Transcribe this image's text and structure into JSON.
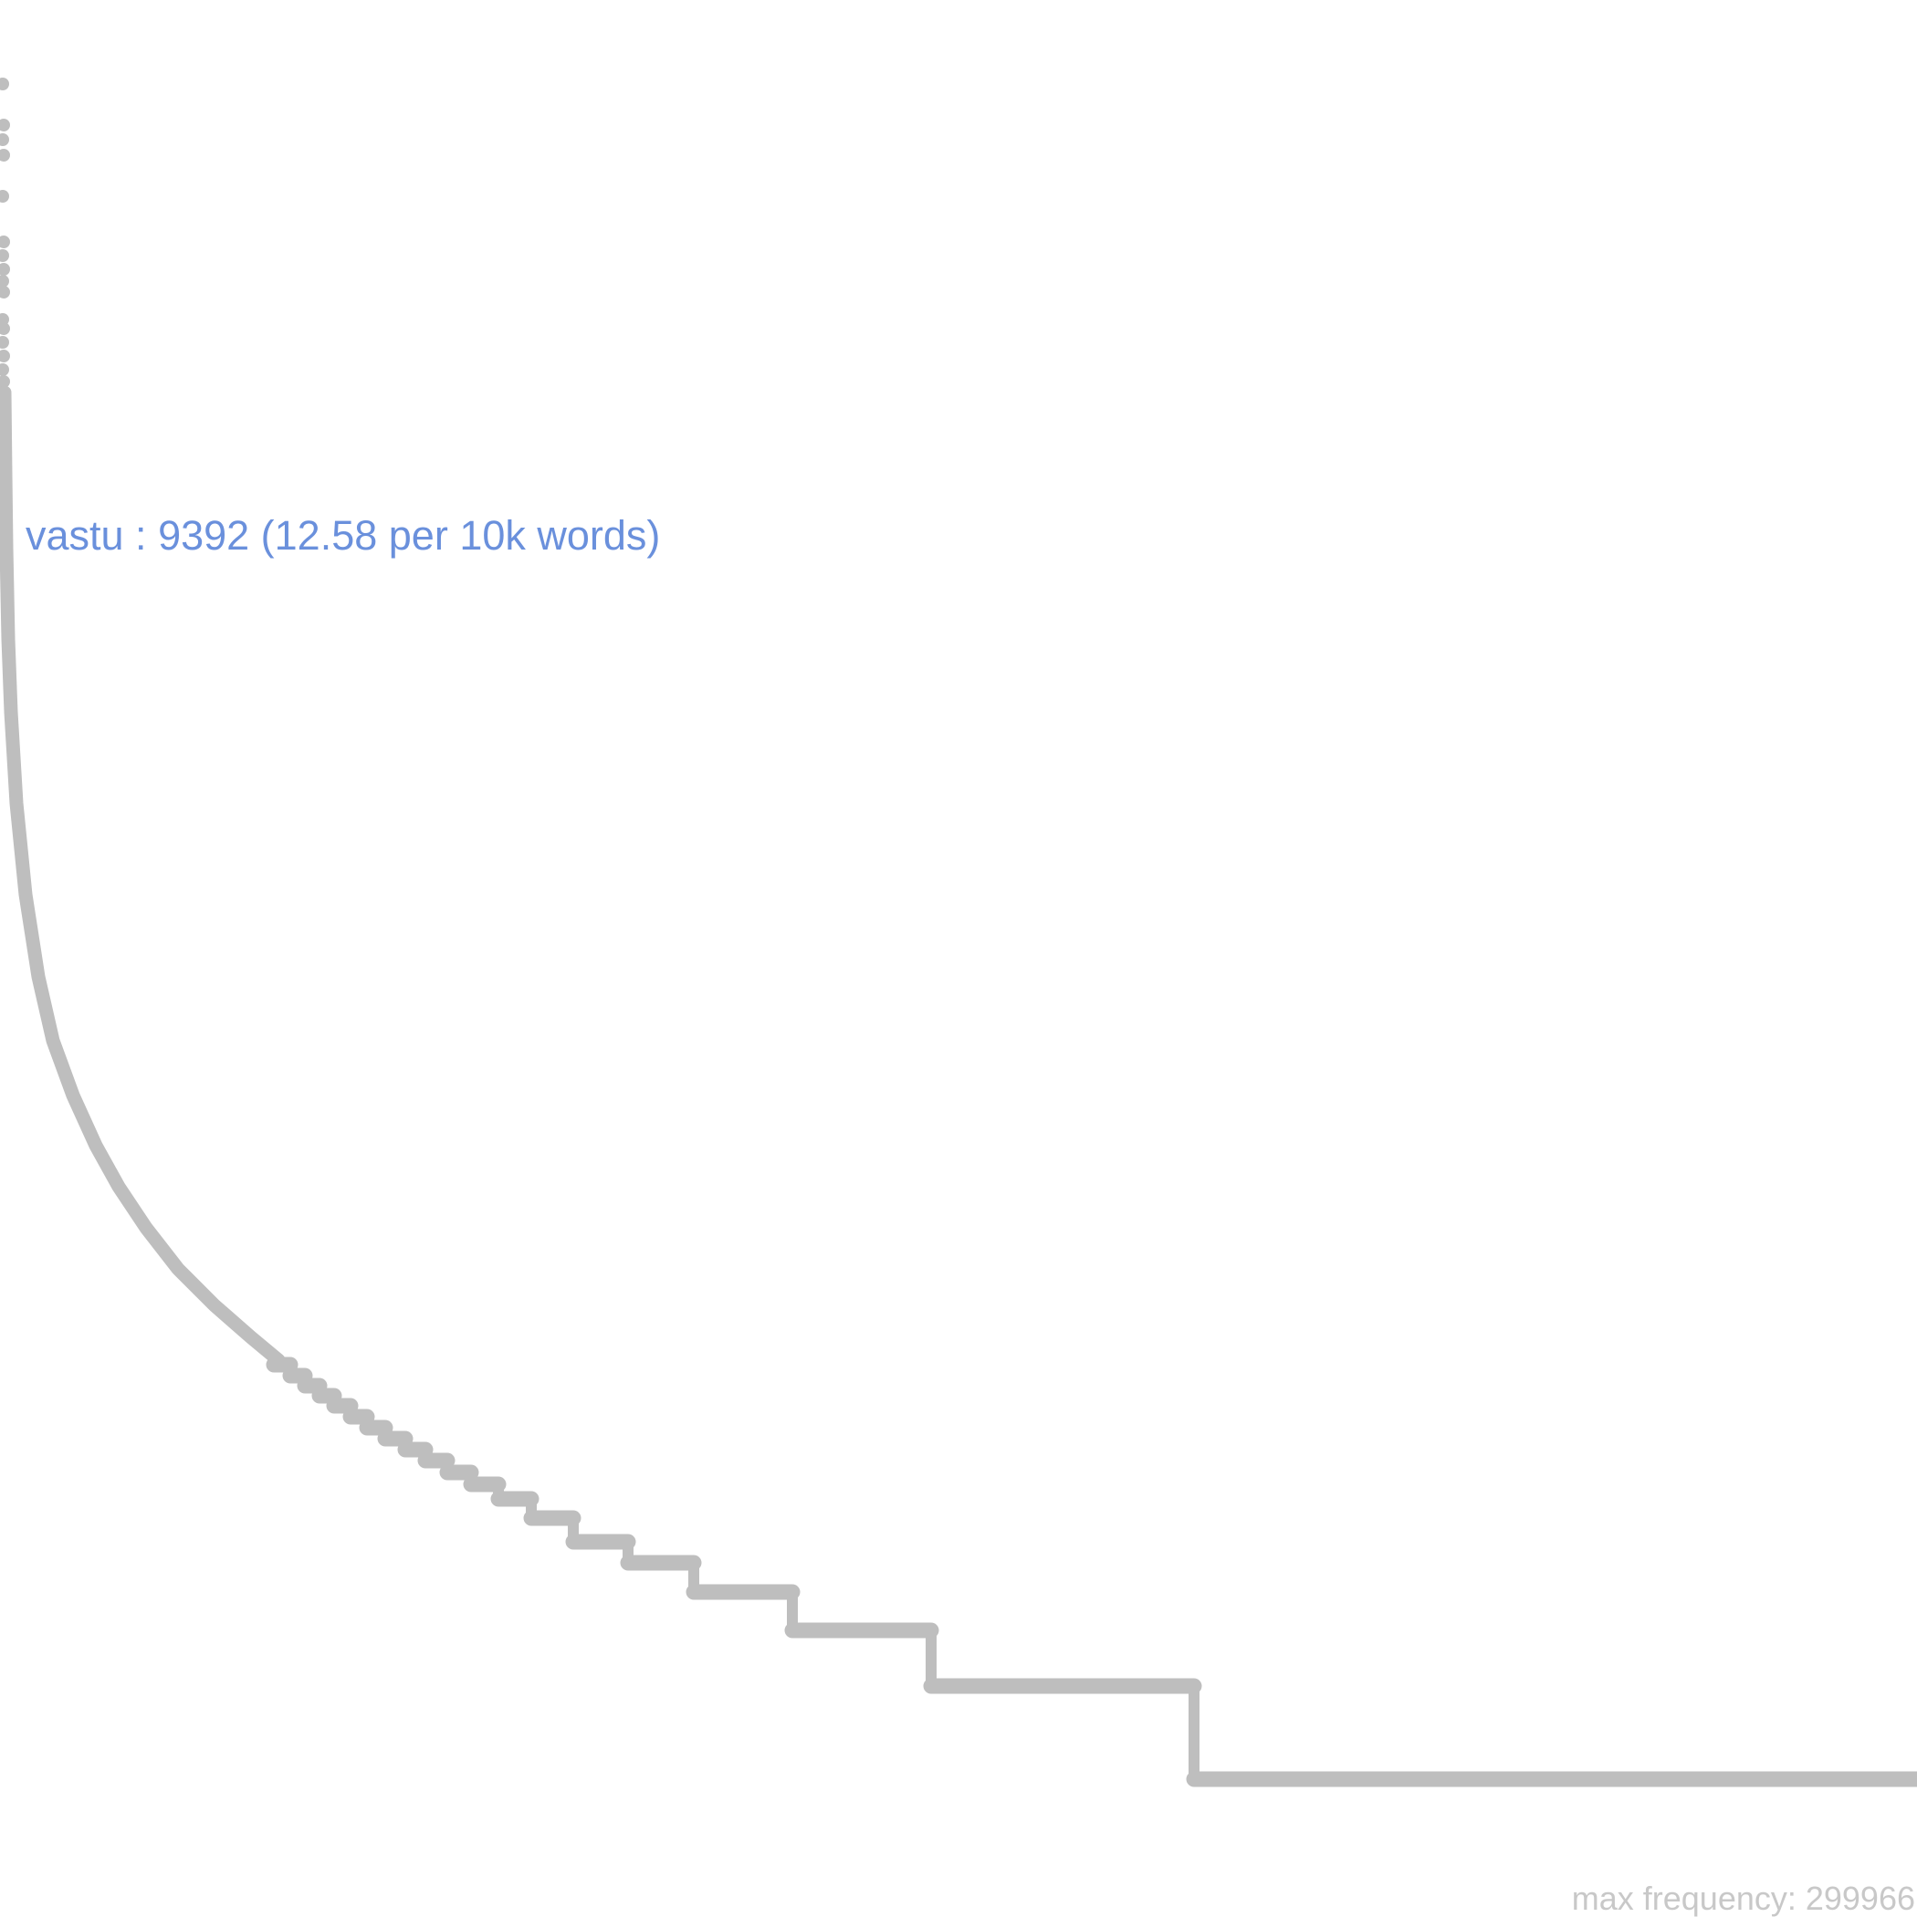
{
  "chart_data": {
    "type": "line",
    "title": "",
    "xlabel": "",
    "ylabel": "",
    "grid": false,
    "legend": "none",
    "y_scale": "log",
    "series_color": "#bebebe",
    "highlight_color": "#6a90dc",
    "footer_color": "#c8c8c8",
    "annotation": {
      "word": "vastu",
      "frequency": 9392,
      "per_10k": 12.58,
      "text": "vastu : 9392 (12.58 per 10k words)"
    },
    "footer": {
      "text": "max frequency: 299966"
    },
    "max_frequency": 299966
  }
}
